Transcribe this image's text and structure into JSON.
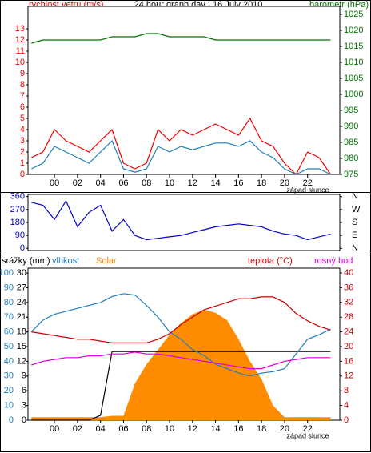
{
  "chart_data": [
    {
      "type": "line",
      "title": "24 hour graph day : 16 July 2010",
      "ylabel": "rychlost vetru (m/s)",
      "y2label": "barometr (hPa)",
      "annotation": "západ slunce",
      "x": [
        -2,
        -1,
        0,
        1,
        2,
        3,
        4,
        5,
        6,
        7,
        8,
        9,
        10,
        11,
        12,
        13,
        14,
        15,
        16,
        17,
        18,
        19,
        20,
        21,
        22,
        23,
        24
      ],
      "xlim": [
        -2.3,
        24.8
      ],
      "xticks": [
        {
          "value": 0,
          "label": "00"
        },
        {
          "value": 2,
          "label": "02"
        },
        {
          "value": 4,
          "label": "04"
        },
        {
          "value": 6,
          "label": "06"
        },
        {
          "value": 8,
          "label": "08"
        },
        10,
        12,
        14,
        16,
        18,
        20,
        22
      ],
      "ylim": [
        0,
        15
      ],
      "yticks": [
        0,
        1,
        2,
        3,
        4,
        5,
        6,
        7,
        8,
        9,
        10,
        11,
        12,
        13
      ],
      "y2lim": [
        975,
        1027.5
      ],
      "y2ticks": [
        975,
        980,
        985,
        990,
        995,
        1000,
        1005,
        1010,
        1015,
        1020,
        1025
      ],
      "series": [
        {
          "color": "#ee0000",
          "values": [
            1.5,
            2,
            4,
            3,
            2.5,
            2,
            3,
            4,
            1,
            0.5,
            1,
            4,
            3,
            4,
            3.5,
            4,
            4.5,
            4,
            3.5,
            5,
            3,
            2.5,
            1,
            0,
            2,
            1.5,
            0
          ]
        },
        {
          "color": "#1e7fb8",
          "values": [
            0.5,
            1,
            2.5,
            2,
            1.5,
            1,
            2,
            3,
            0.5,
            0.2,
            0.5,
            2.5,
            2,
            2.5,
            2.2,
            2.5,
            2.8,
            2.8,
            2.5,
            3,
            2,
            1.5,
            0.5,
            0,
            0.5,
            0.5,
            0
          ]
        },
        {
          "color": "#007000",
          "axis": "y2",
          "values": [
            1016,
            1017,
            1017,
            1017,
            1017,
            1017,
            1017,
            1018,
            1018,
            1018,
            1019,
            1019,
            1018,
            1018,
            1018,
            1018,
            1017,
            1017,
            1017,
            1017,
            1017,
            1017,
            1017,
            1017,
            1017,
            1017,
            1017
          ]
        }
      ]
    },
    {
      "type": "line",
      "x": [
        -2,
        -1,
        0,
        1,
        2,
        3,
        4,
        5,
        6,
        7,
        8,
        9,
        10,
        11,
        12,
        13,
        14,
        15,
        16,
        17,
        18,
        19,
        20,
        21,
        22,
        23,
        24
      ],
      "xlim": [
        -2.3,
        24.8
      ],
      "ylim": [
        -15,
        375
      ],
      "yticks": [
        0,
        90,
        180,
        270,
        360
      ],
      "y2lim": [
        -15,
        375
      ],
      "y2ticks": [
        {
          "value": 0,
          "label": "N"
        },
        {
          "value": 90,
          "label": "E"
        },
        {
          "value": 180,
          "label": "S"
        },
        {
          "value": 270,
          "label": "W"
        },
        {
          "value": 360,
          "label": "N"
        }
      ],
      "series": [
        {
          "color": "#0000cc",
          "values": [
            320,
            300,
            200,
            330,
            150,
            250,
            300,
            120,
            200,
            90,
            60,
            70,
            80,
            90,
            110,
            130,
            150,
            160,
            170,
            160,
            150,
            120,
            100,
            90,
            60,
            80,
            100
          ]
        }
      ]
    },
    {
      "type": "line",
      "annotation": "západ slunce",
      "x": [
        -2,
        -1,
        0,
        1,
        2,
        3,
        4,
        5,
        6,
        7,
        8,
        9,
        10,
        11,
        12,
        13,
        14,
        15,
        16,
        17,
        18,
        19,
        20,
        21,
        22,
        23,
        24
      ],
      "xlim": [
        -2.3,
        24.8
      ],
      "xticks": [
        {
          "value": 0,
          "label": "00"
        },
        {
          "value": 2,
          "label": "02"
        },
        {
          "value": 4,
          "label": "04"
        },
        {
          "value": 6,
          "label": "06"
        },
        {
          "value": 8,
          "label": "08"
        },
        10,
        12,
        14,
        16,
        18,
        20,
        22
      ],
      "ylim": [
        0,
        31
      ],
      "yticks": [
        0,
        3,
        6,
        9,
        12,
        15,
        18,
        21,
        24,
        27,
        30
      ],
      "y3lim": [
        0,
        103.3
      ],
      "y3ticks": [
        0,
        10,
        20,
        30,
        40,
        50,
        60,
        70,
        80,
        90,
        100
      ],
      "y2lim": [
        0,
        41.3
      ],
      "y2ticks": [
        0,
        4,
        8,
        12,
        16,
        20,
        24,
        28,
        32,
        36,
        40
      ],
      "series": [
        {
          "name": "srážky (mm)",
          "color": "#000000",
          "values": [
            0,
            0,
            0,
            0,
            0,
            0,
            1,
            14,
            14,
            14,
            14,
            14,
            14,
            14,
            14,
            14,
            14,
            14,
            14,
            14,
            14,
            14,
            14,
            14,
            14,
            14,
            14
          ]
        },
        {
          "name": "vlhkost",
          "color": "#2080c0",
          "axis": "y3",
          "values": [
            60,
            68,
            72,
            74,
            76,
            78,
            80,
            84,
            86,
            85,
            78,
            70,
            60,
            55,
            48,
            44,
            38,
            35,
            32,
            30,
            32,
            33,
            35,
            45,
            55,
            58,
            62
          ]
        },
        {
          "name": "Solar",
          "color": "#ff8c00",
          "axis": "y3",
          "area": true,
          "values": [
            2,
            2,
            2,
            2,
            2,
            2,
            2,
            3,
            3,
            25,
            38,
            48,
            58,
            66,
            72,
            75,
            73,
            68,
            55,
            40,
            28,
            10,
            2,
            2,
            2,
            2,
            2
          ]
        },
        {
          "name": "teplota (°C)",
          "color": "#cc0000",
          "axis": "y2",
          "values": [
            24,
            23.5,
            23,
            22.5,
            22,
            22,
            21.5,
            21,
            21,
            21,
            21,
            22,
            23.5,
            26,
            28,
            30,
            31,
            32,
            33,
            33,
            33.5,
            33.5,
            32,
            29,
            27,
            25.5,
            24.5
          ]
        },
        {
          "name": "rosný bod",
          "color": "#dd00dd",
          "axis": "y2",
          "values": [
            15,
            16,
            16.5,
            17,
            17,
            17.5,
            17.5,
            18,
            18,
            18.5,
            18,
            18,
            17.5,
            17,
            16.5,
            16,
            15.5,
            15,
            14.5,
            14,
            14,
            15,
            16,
            16.5,
            17,
            17,
            17
          ]
        }
      ]
    }
  ]
}
